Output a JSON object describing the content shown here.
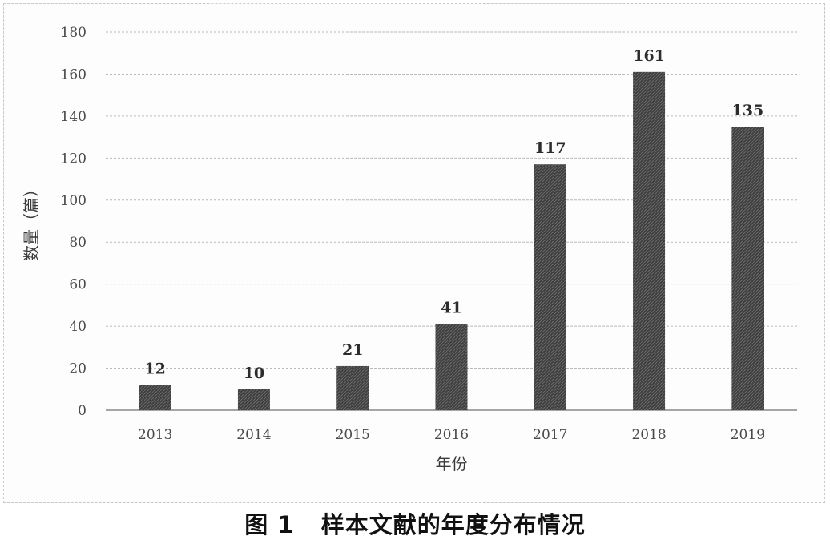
{
  "caption": "图 1   样本文献的年度分布情况",
  "chart_data": {
    "type": "bar",
    "categories": [
      "2013",
      "2014",
      "2015",
      "2016",
      "2017",
      "2018",
      "2019"
    ],
    "values": [
      12,
      10,
      21,
      41,
      117,
      161,
      135
    ],
    "data_labels": [
      "12",
      "10",
      "21",
      "41",
      "117",
      "161",
      "135"
    ],
    "ylim": [
      0,
      180
    ],
    "yticks": [
      0,
      20,
      40,
      60,
      80,
      100,
      120,
      140,
      160,
      180
    ],
    "xlabel": "年份",
    "ylabel": "数量（篇）",
    "grid": true,
    "legend": "none",
    "bar_color": "#3c3c3c"
  }
}
